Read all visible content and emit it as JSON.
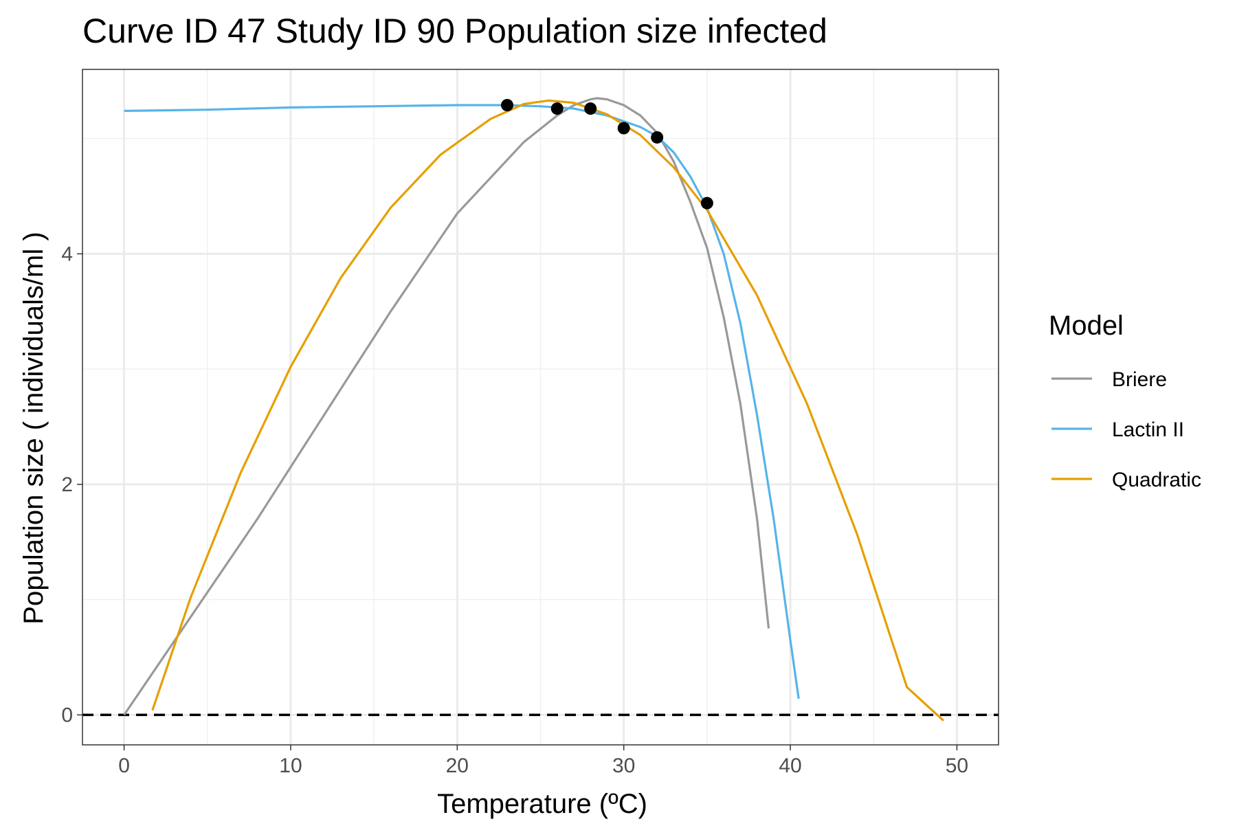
{
  "chart_data": {
    "type": "line",
    "title": "Curve ID 47 Study ID 90 Population size infected",
    "xlabel": "Temperature (ºC)",
    "ylabel": "Population size ( individuals/ml )",
    "xlim": [
      -2.5,
      52.5
    ],
    "ylim": [
      -0.26,
      5.6
    ],
    "x_ticks": [
      0,
      10,
      20,
      30,
      40,
      50
    ],
    "x_tick_labels": [
      "0",
      "10",
      "20",
      "30",
      "40",
      "50"
    ],
    "y_ticks": [
      0,
      2,
      4
    ],
    "y_tick_labels": [
      "0",
      "2",
      "4"
    ],
    "grid": true,
    "legend": {
      "title": "Model",
      "position": "right"
    },
    "reference_line": {
      "y": 0,
      "style": "dashed",
      "color": "#000000"
    },
    "series": [
      {
        "name": "Briere",
        "color": "#999999",
        "x": [
          0,
          4,
          8,
          12,
          16,
          20,
          24,
          26,
          27,
          28,
          28.4,
          29,
          30,
          31,
          32,
          33,
          34,
          35,
          36,
          37,
          38,
          38.7
        ],
        "y": [
          0,
          0.85,
          1.7,
          2.6,
          3.5,
          4.35,
          4.97,
          5.2,
          5.29,
          5.34,
          5.35,
          5.34,
          5.29,
          5.2,
          5.05,
          4.8,
          4.45,
          4.05,
          3.45,
          2.7,
          1.7,
          0.75
        ]
      },
      {
        "name": "Lactin II",
        "color": "#56B4E9",
        "x": [
          0,
          5,
          10,
          15,
          20,
          23,
          25,
          27,
          29,
          31,
          32,
          33,
          34,
          35,
          36,
          37,
          38,
          39,
          40,
          40.5
        ],
        "y": [
          5.24,
          5.25,
          5.27,
          5.28,
          5.29,
          5.29,
          5.28,
          5.26,
          5.2,
          5.1,
          5.02,
          4.88,
          4.67,
          4.4,
          4.0,
          3.4,
          2.6,
          1.7,
          0.65,
          0.14
        ]
      },
      {
        "name": "Quadratic",
        "color": "#E69F00",
        "x": [
          1.7,
          4,
          7,
          10,
          13,
          16,
          19,
          22,
          24,
          25.5,
          27,
          29,
          31,
          33,
          35,
          38,
          41,
          44,
          47,
          49.2
        ],
        "y": [
          0.04,
          1.02,
          2.1,
          3.02,
          3.79,
          4.4,
          4.86,
          5.17,
          5.3,
          5.33,
          5.31,
          5.21,
          5.03,
          4.75,
          4.38,
          3.64,
          2.7,
          1.57,
          0.24,
          -0.05
        ]
      }
    ],
    "points": {
      "x": [
        23,
        26,
        28,
        30,
        32,
        35
      ],
      "y": [
        5.29,
        5.26,
        5.26,
        5.09,
        5.01,
        4.44
      ],
      "color": "#000000"
    }
  }
}
